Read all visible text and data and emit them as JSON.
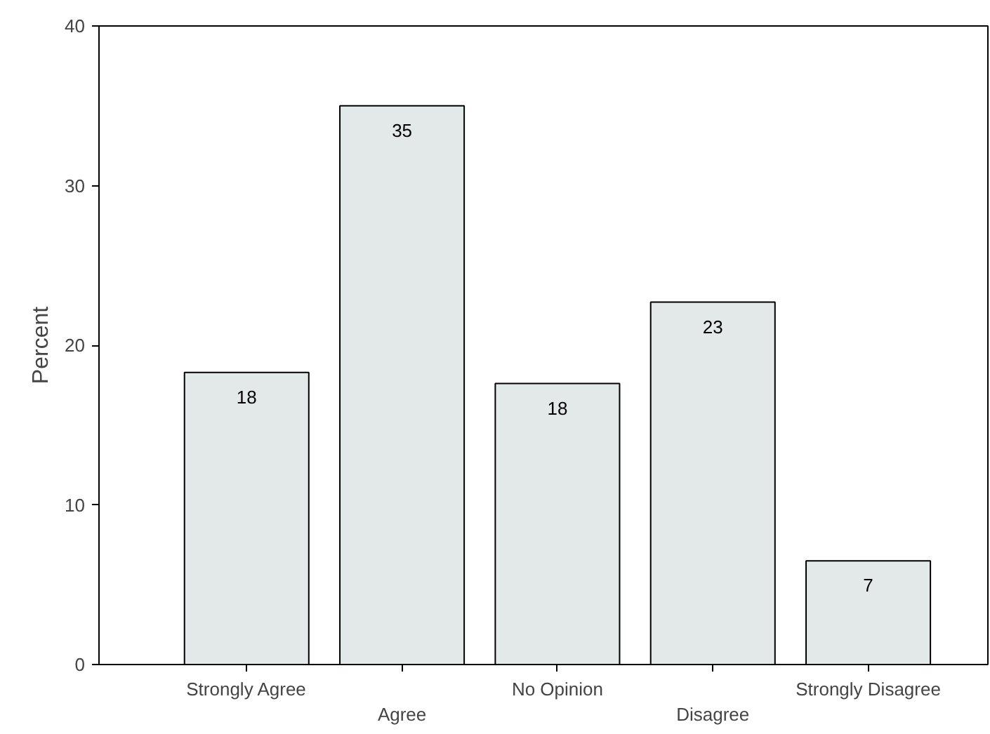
{
  "chart_data": {
    "type": "bar",
    "ylabel": "Percent",
    "categories": [
      "Strongly Agree",
      "Agree",
      "No Opinion",
      "Disagree",
      "Strongly Disagree"
    ],
    "values": [
      18.3,
      35,
      17.6,
      22.7,
      6.5
    ],
    "value_labels": [
      "18",
      "35",
      "18",
      "23",
      "7"
    ],
    "color": "#e3e9e8",
    "ylim": [
      0,
      40
    ],
    "yticks": [
      0,
      10,
      20,
      30,
      40
    ],
    "grid": false
  }
}
